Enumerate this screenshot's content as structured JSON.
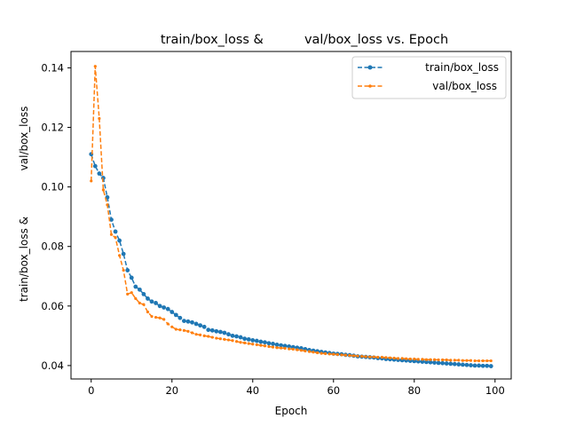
{
  "chart_data": {
    "type": "line",
    "title": "train/box_loss &          val/box_loss vs. Epoch",
    "xlabel": "Epoch",
    "ylabel_lines": [
      "train/box_loss &",
      "val/box_loss"
    ],
    "xlim": [
      -5,
      104
    ],
    "ylim": [
      0.0355,
      0.1455
    ],
    "xticks": [
      0,
      20,
      40,
      60,
      80,
      100
    ],
    "yticks": [
      0.04,
      0.06,
      0.08,
      0.1,
      0.12,
      0.14
    ],
    "ytick_labels": [
      "0.04",
      "0.06",
      "0.08",
      "0.10",
      "0.12",
      "0.14"
    ],
    "grid": false,
    "legend": "top-right",
    "series": [
      {
        "name": "train/box_loss",
        "color": "#1f77b4",
        "marker": "circle",
        "values": [
          0.111,
          0.107,
          0.1045,
          0.103,
          0.0965,
          0.089,
          0.085,
          0.082,
          0.0775,
          0.072,
          0.0695,
          0.0665,
          0.0655,
          0.064,
          0.0625,
          0.0615,
          0.061,
          0.06,
          0.0595,
          0.059,
          0.058,
          0.057,
          0.056,
          0.055,
          0.0548,
          0.0545,
          0.054,
          0.0535,
          0.053,
          0.052,
          0.0518,
          0.0515,
          0.0513,
          0.051,
          0.0505,
          0.05,
          0.0498,
          0.0495,
          0.049,
          0.0488,
          0.0485,
          0.0483,
          0.048,
          0.0478,
          0.0475,
          0.0473,
          0.047,
          0.0468,
          0.0466,
          0.0464,
          0.0462,
          0.046,
          0.0458,
          0.0455,
          0.0452,
          0.045,
          0.0448,
          0.0446,
          0.0444,
          0.0442,
          0.044,
          0.0439,
          0.0438,
          0.0436,
          0.0435,
          0.0433,
          0.0431,
          0.043,
          0.0429,
          0.0428,
          0.0427,
          0.0425,
          0.0424,
          0.0422,
          0.0421,
          0.042,
          0.0419,
          0.0418,
          0.0417,
          0.0416,
          0.0415,
          0.0414,
          0.0413,
          0.0412,
          0.0411,
          0.041,
          0.0409,
          0.0408,
          0.0407,
          0.0406,
          0.0405,
          0.0404,
          0.0403,
          0.0402,
          0.0401,
          0.04,
          0.04,
          0.0399,
          0.0399,
          0.0398
        ]
      },
      {
        "name": "val/box_loss",
        "color": "#ff7f0e",
        "marker": "star",
        "values": [
          0.102,
          0.1405,
          0.123,
          0.099,
          0.094,
          0.084,
          0.083,
          0.077,
          0.072,
          0.064,
          0.0645,
          0.0625,
          0.061,
          0.0605,
          0.058,
          0.0565,
          0.0562,
          0.056,
          0.0555,
          0.054,
          0.053,
          0.0522,
          0.052,
          0.0518,
          0.0515,
          0.051,
          0.0505,
          0.0503,
          0.05,
          0.0498,
          0.0495,
          0.0492,
          0.049,
          0.0488,
          0.0486,
          0.0484,
          0.0481,
          0.0478,
          0.0476,
          0.0474,
          0.0472,
          0.047,
          0.0468,
          0.0466,
          0.0464,
          0.0462,
          0.046,
          0.0459,
          0.0458,
          0.0456,
          0.0455,
          0.0453,
          0.0451,
          0.0449,
          0.0447,
          0.0445,
          0.0443,
          0.0441,
          0.044,
          0.0439,
          0.0438,
          0.0437,
          0.0436,
          0.0435,
          0.0434,
          0.0433,
          0.0432,
          0.0431,
          0.043,
          0.0429,
          0.0429,
          0.0428,
          0.0428,
          0.0427,
          0.0426,
          0.0425,
          0.0424,
          0.0424,
          0.0423,
          0.0422,
          0.0422,
          0.0421,
          0.0421,
          0.042,
          0.042,
          0.042,
          0.0419,
          0.0419,
          0.0419,
          0.0418,
          0.0418,
          0.0418,
          0.0417,
          0.0417,
          0.0417,
          0.0416,
          0.0416,
          0.0416,
          0.0416,
          0.0416
        ]
      }
    ]
  }
}
